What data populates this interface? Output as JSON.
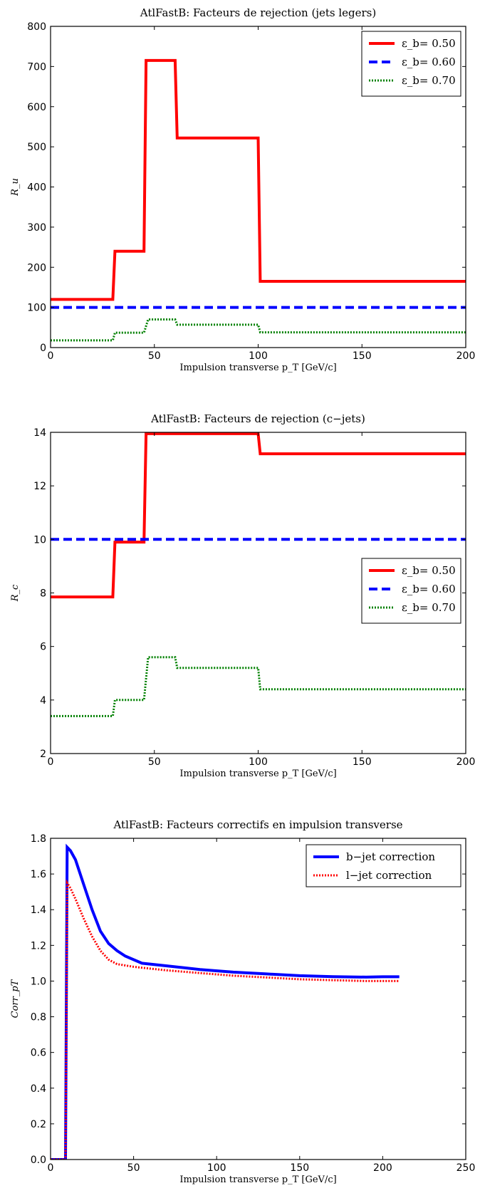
{
  "chart_data": [
    {
      "type": "line",
      "title": "AtlFastB: Facteurs de rejection (jets legers)",
      "xlabel": "Impulsion transverse p_T [GeV/c]",
      "ylabel": "R_u",
      "xlim": [
        0,
        200
      ],
      "ylim": [
        0,
        800
      ],
      "xticks": [
        0,
        50,
        100,
        150,
        200
      ],
      "yticks": [
        0,
        100,
        200,
        300,
        400,
        500,
        600,
        700,
        800
      ],
      "legend_position": "top-right",
      "series": [
        {
          "name": "ε_b= 0.50",
          "color": "#ff0000",
          "style": "solid",
          "x": [
            0,
            30,
            31,
            45,
            46,
            60,
            61,
            100,
            101,
            200
          ],
          "y": [
            120,
            120,
            240,
            240,
            715,
            715,
            522,
            522,
            165,
            165
          ]
        },
        {
          "name": "ε_b= 0.60",
          "color": "#0000ff",
          "style": "dashed",
          "x": [
            0,
            200
          ],
          "y": [
            100,
            100
          ]
        },
        {
          "name": "ε_b= 0.70",
          "color": "#008000",
          "style": "dotted",
          "x": [
            0,
            30,
            31,
            45,
            47,
            60,
            61,
            100,
            101,
            200
          ],
          "y": [
            18,
            18,
            37,
            37,
            70,
            70,
            57,
            57,
            38,
            38
          ]
        }
      ]
    },
    {
      "type": "line",
      "title": "AtlFastB: Facteurs de rejection (c−jets)",
      "xlabel": "Impulsion transverse p_T [GeV/c]",
      "ylabel": "R_c",
      "xlim": [
        0,
        200
      ],
      "ylim": [
        2,
        14
      ],
      "xticks": [
        0,
        50,
        100,
        150,
        200
      ],
      "yticks": [
        2,
        4,
        6,
        8,
        10,
        12,
        14
      ],
      "legend_position": "center-right",
      "series": [
        {
          "name": "ε_b= 0.50",
          "color": "#ff0000",
          "style": "solid",
          "x": [
            0,
            30,
            31,
            45,
            46,
            100,
            101,
            200
          ],
          "y": [
            7.85,
            7.85,
            9.9,
            9.9,
            13.95,
            13.95,
            13.2,
            13.2
          ]
        },
        {
          "name": "ε_b= 0.60",
          "color": "#0000ff",
          "style": "dashed",
          "x": [
            0,
            200
          ],
          "y": [
            10,
            10
          ]
        },
        {
          "name": "ε_b= 0.70",
          "color": "#008000",
          "style": "dotted",
          "x": [
            0,
            30,
            31,
            45,
            47,
            60,
            61,
            100,
            101,
            200
          ],
          "y": [
            3.4,
            3.4,
            4.0,
            4.0,
            5.6,
            5.6,
            5.2,
            5.2,
            4.4,
            4.4
          ]
        }
      ]
    },
    {
      "type": "line",
      "title": "AtlFastB: Facteurs correctifs en impulsion transverse",
      "xlabel": "Impulsion transverse p_T [GeV/c]",
      "ylabel": "Corr_pT",
      "xlim": [
        0,
        250
      ],
      "ylim": [
        0,
        1.8
      ],
      "xticks": [
        0,
        50,
        100,
        150,
        200,
        250
      ],
      "yticks": [
        0.0,
        0.2,
        0.4,
        0.6,
        0.8,
        1.0,
        1.2,
        1.4,
        1.6,
        1.8
      ],
      "legend_position": "top-right",
      "series": [
        {
          "name": "b−jet correction",
          "color": "#0000ff",
          "style": "solid",
          "x": [
            0,
            9,
            10,
            12,
            15,
            20,
            25,
            30,
            35,
            40,
            45,
            50,
            55,
            70,
            90,
            110,
            130,
            150,
            170,
            190,
            200,
            210
          ],
          "y": [
            0,
            0,
            1.75,
            1.73,
            1.68,
            1.54,
            1.4,
            1.28,
            1.21,
            1.17,
            1.14,
            1.12,
            1.1,
            1.085,
            1.065,
            1.05,
            1.04,
            1.03,
            1.025,
            1.022,
            1.024,
            1.024
          ]
        },
        {
          "name": "l−jet correction",
          "color": "#ff0000",
          "style": "dotted",
          "x": [
            0,
            9,
            10,
            12,
            15,
            20,
            25,
            30,
            35,
            40,
            50,
            55,
            70,
            90,
            110,
            130,
            150,
            170,
            190,
            200,
            210
          ],
          "y": [
            0,
            0,
            1.55,
            1.52,
            1.46,
            1.35,
            1.25,
            1.17,
            1.12,
            1.095,
            1.08,
            1.075,
            1.06,
            1.045,
            1.03,
            1.02,
            1.01,
            1.005,
            1.0,
            1.0,
            1.0
          ]
        }
      ]
    }
  ]
}
